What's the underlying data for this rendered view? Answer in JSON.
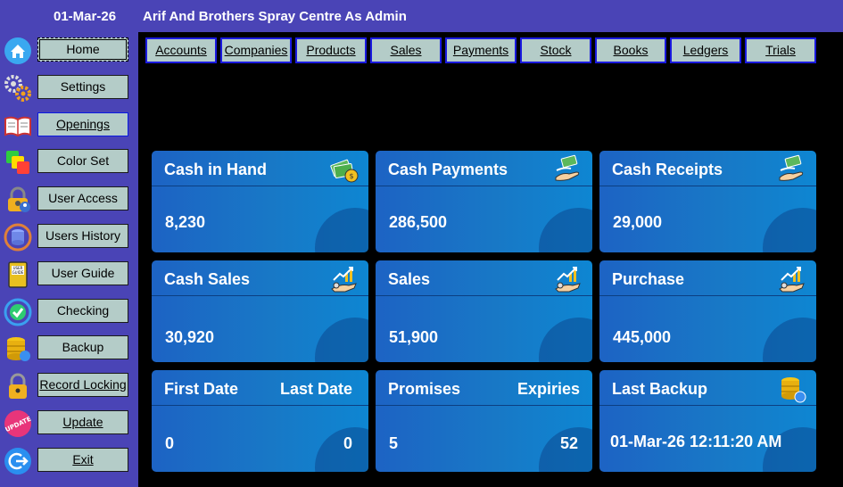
{
  "titlebar": {
    "date": "01-Mar-26",
    "title": "Arif And Brothers Spray Centre As Admin"
  },
  "sidebar": {
    "items": [
      {
        "label": "Home",
        "icon": "home-icon"
      },
      {
        "label": "Settings",
        "icon": "gears-icon"
      },
      {
        "label": "Openings",
        "icon": "open-book-icon"
      },
      {
        "label": "Color Set",
        "icon": "color-palette-icon"
      },
      {
        "label": "User Access",
        "icon": "user-lock-icon"
      },
      {
        "label": "Users History",
        "icon": "database-history-icon"
      },
      {
        "label": "User Guide",
        "icon": "user-guide-book-icon"
      },
      {
        "label": "Checking",
        "icon": "check-sync-icon"
      },
      {
        "label": "Backup",
        "icon": "database-backup-icon"
      },
      {
        "label": "Record Locking",
        "icon": "padlock-icon"
      },
      {
        "label": "Update",
        "icon": "update-badge-icon"
      },
      {
        "label": "Exit",
        "icon": "exit-icon"
      }
    ]
  },
  "topnav": {
    "items": [
      "Accounts",
      "Companies",
      "Products",
      "Sales",
      "Payments",
      "Stock",
      "Books",
      "Ledgers",
      "Trials"
    ]
  },
  "cards": {
    "cash_in_hand": {
      "title": "Cash in Hand",
      "value": "8,230",
      "icon": "money-stack-icon"
    },
    "cash_payments": {
      "title": "Cash Payments",
      "value": "286,500",
      "icon": "hand-cash-icon"
    },
    "cash_receipts": {
      "title": "Cash Receipts",
      "value": "29,000",
      "icon": "hand-cash-icon"
    },
    "cash_sales": {
      "title": "Cash Sales",
      "value": "30,920",
      "icon": "growth-hand-icon"
    },
    "sales": {
      "title": "Sales",
      "value": "51,900",
      "icon": "growth-hand-icon"
    },
    "purchase": {
      "title": "Purchase",
      "value": "445,000",
      "icon": "growth-hand-icon"
    },
    "dates": {
      "title_left": "First Date",
      "title_right": "Last Date",
      "value_left": "0",
      "value_right": "0"
    },
    "promises": {
      "title_left": "Promises",
      "title_right": "Expiries",
      "value_left": "5",
      "value_right": "52"
    },
    "last_backup": {
      "title": "Last Backup",
      "value": "01-Mar-26 12:11:20 AM",
      "icon": "database-backup-icon"
    }
  },
  "colors": {
    "titlebar": "#4a44b6",
    "button": "#b4ccc8",
    "card_start": "#1d63c4",
    "card_end": "#0e86d2"
  }
}
